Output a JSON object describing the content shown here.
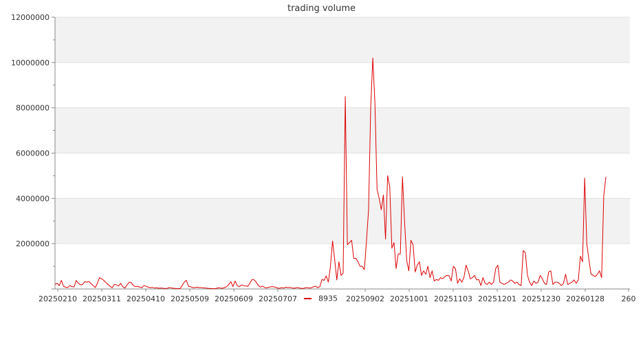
{
  "chart_data": {
    "type": "line",
    "title": "trading volume",
    "xlabel": "",
    "ylabel": "",
    "ylim": [
      0,
      12000000
    ],
    "y_ticks": [
      2000000,
      4000000,
      6000000,
      8000000,
      10000000,
      12000000
    ],
    "y_tick_labels": [
      "2000000",
      "4000000",
      "6000000",
      "8000000",
      "10000000",
      "12000000"
    ],
    "x_tick_labels": [
      "20250210",
      "20250311",
      "20250410",
      "20250509",
      "20250609",
      "20250707",
      "20250902",
      "20251001",
      "20251103",
      "20251201",
      "20251230",
      "20260128",
      "260"
    ],
    "grid": "horizontal bands",
    "legend_position": "bottom-center",
    "colors": {
      "series": "#dd0000",
      "band": "#f2f2f2",
      "grid": "#e0e0e0",
      "axis": "#888888"
    },
    "series": [
      {
        "name": "8935",
        "values": [
          200000,
          250000,
          150000,
          380000,
          120000,
          80000,
          60000,
          150000,
          100000,
          90000,
          380000,
          250000,
          180000,
          200000,
          320000,
          300000,
          330000,
          240000,
          150000,
          60000,
          250000,
          500000,
          450000,
          380000,
          280000,
          200000,
          120000,
          50000,
          200000,
          180000,
          130000,
          250000,
          100000,
          40000,
          180000,
          300000,
          280000,
          150000,
          100000,
          120000,
          80000,
          60000,
          150000,
          120000,
          80000,
          60000,
          70000,
          40000,
          50000,
          30000,
          40000,
          30000,
          20000,
          30000,
          60000,
          40000,
          30000,
          20000,
          20000,
          10000,
          150000,
          300000,
          380000,
          120000,
          100000,
          60000,
          60000,
          80000,
          60000,
          60000,
          50000,
          40000,
          30000,
          20000,
          20000,
          10000,
          20000,
          50000,
          40000,
          30000,
          60000,
          100000,
          200000,
          320000,
          100000,
          350000,
          150000,
          100000,
          180000,
          150000,
          130000,
          120000,
          250000,
          420000,
          400000,
          300000,
          150000,
          80000,
          130000,
          60000,
          50000,
          80000,
          100000,
          100000,
          80000,
          40000,
          30000,
          60000,
          40000,
          80000,
          60000,
          70000,
          40000,
          30000,
          60000,
          50000,
          30000,
          20000,
          50000,
          60000,
          40000,
          50000,
          100000,
          120000,
          60000,
          100000,
          420000,
          380000,
          580000,
          300000,
          1000000,
          2120000,
          1300000,
          400000,
          1200000,
          600000,
          700000,
          8500000,
          1950000,
          2050000,
          2150000,
          1350000,
          1350000,
          1200000,
          1000000,
          1000000,
          850000,
          2100000,
          3500000,
          8000000,
          10200000,
          8200000,
          4400000,
          4000000,
          3500000,
          4150000,
          2200000,
          5000000,
          4500000,
          1800000,
          2050000,
          900000,
          1550000,
          1550000,
          4950000,
          2950000,
          1250000,
          800000,
          2150000,
          1950000,
          750000,
          1050000,
          1200000,
          600000,
          800000,
          650000,
          1000000,
          500000,
          800000,
          350000,
          420000,
          380000,
          500000,
          450000,
          550000,
          600000,
          580000,
          350000,
          1000000,
          900000,
          250000,
          450000,
          300000,
          500000,
          1050000,
          800000,
          450000,
          500000,
          600000,
          400000,
          420000,
          150000,
          500000,
          250000,
          200000,
          300000,
          200000,
          300000,
          900000,
          1050000,
          300000,
          250000,
          200000,
          250000,
          300000,
          400000,
          350000,
          250000,
          300000,
          200000,
          150000,
          1700000,
          1600000,
          600000,
          300000,
          150000,
          350000,
          250000,
          300000,
          600000,
          450000,
          250000,
          200000,
          750000,
          800000,
          200000,
          300000,
          300000,
          250000,
          150000,
          250000,
          650000,
          200000,
          250000,
          300000,
          400000,
          250000,
          400000,
          1450000,
          1200000,
          4900000,
          2000000,
          1300000,
          650000,
          600000,
          550000,
          650000,
          800000,
          500000,
          4100000,
          4950000
        ]
      }
    ]
  }
}
